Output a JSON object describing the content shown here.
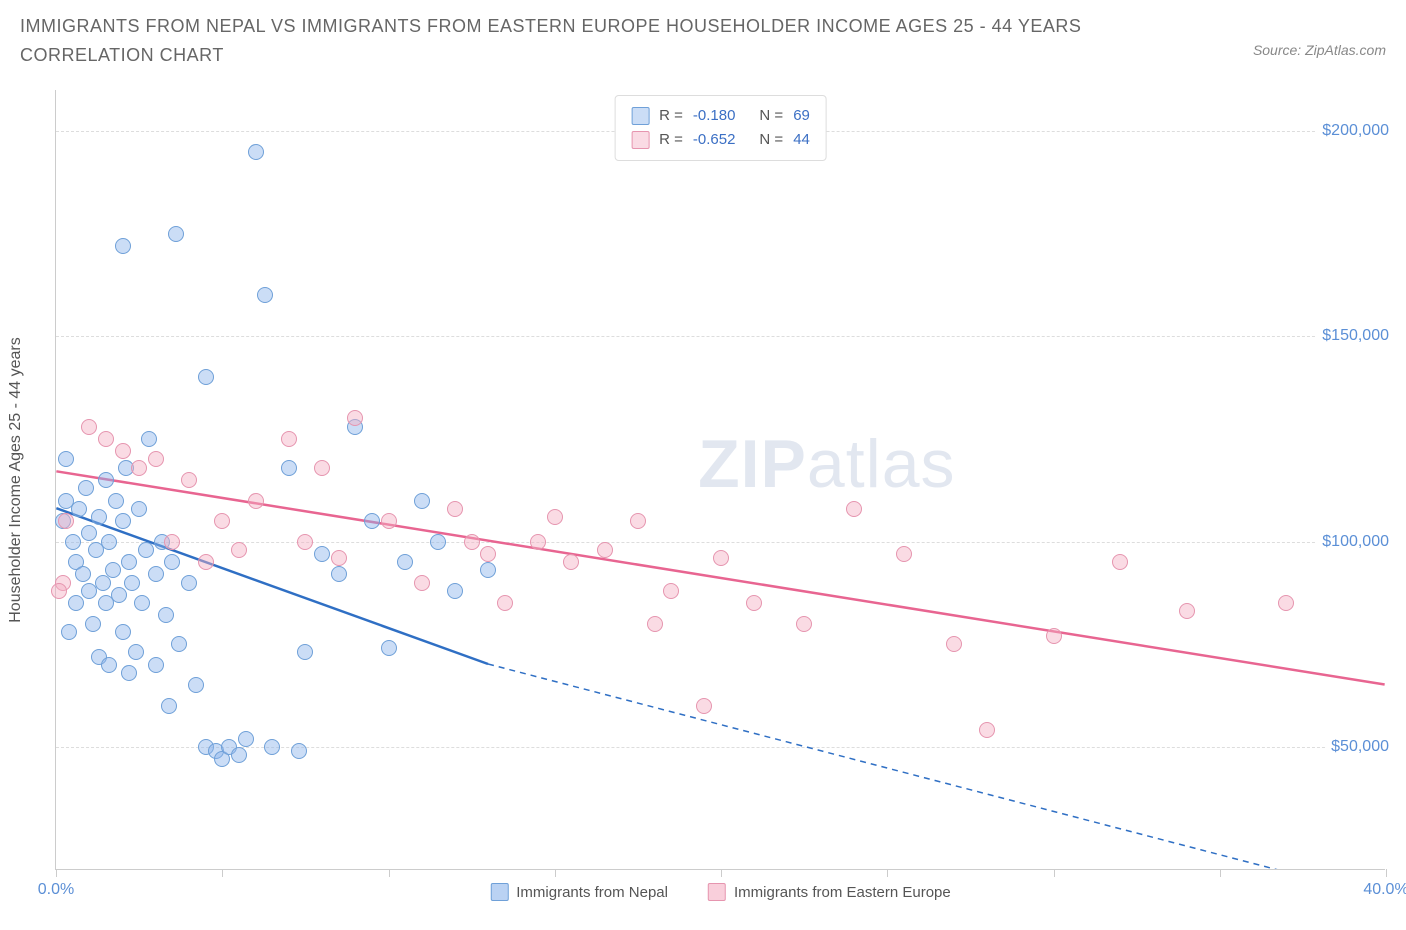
{
  "header": {
    "title": "IMMIGRANTS FROM NEPAL VS IMMIGRANTS FROM EASTERN EUROPE HOUSEHOLDER INCOME AGES 25 - 44 YEARS CORRELATION CHART",
    "source": "Source: ZipAtlas.com"
  },
  "chart": {
    "type": "scatter",
    "y_axis_title": "Householder Income Ages 25 - 44 years",
    "xlim": [
      0,
      40
    ],
    "ylim": [
      20000,
      210000
    ],
    "x_ticks": [
      0,
      5,
      10,
      15,
      20,
      25,
      30,
      35,
      40
    ],
    "x_tick_labels": {
      "0": "0.0%",
      "40": "40.0%"
    },
    "y_gridlines": [
      50000,
      100000,
      150000,
      200000
    ],
    "y_tick_labels": {
      "50000": "$50,000",
      "100000": "$100,000",
      "150000": "$150,000",
      "200000": "$200,000"
    },
    "background_color": "#ffffff",
    "grid_color": "#dddddd",
    "axis_color": "#cccccc",
    "label_color": "#5b8fd6",
    "text_color": "#555555",
    "watermark": "ZIPatlas",
    "series": [
      {
        "name": "Immigrants from Nepal",
        "fill": "rgba(140, 180, 235, 0.45)",
        "stroke": "#6fa0d8",
        "line_color": "#2f6fc4",
        "line_width": 2.5,
        "marker_radius": 8,
        "stats": {
          "R": "-0.180",
          "N": "69"
        },
        "trend": {
          "x1": 0,
          "y1": 108000,
          "x2_solid": 13,
          "y2_solid": 70000,
          "x2_dash": 40,
          "y2_dash": 13000
        },
        "points": [
          [
            0.2,
            105000
          ],
          [
            0.3,
            110000
          ],
          [
            0.5,
            100000
          ],
          [
            0.6,
            95000
          ],
          [
            0.7,
            108000
          ],
          [
            0.8,
            92000
          ],
          [
            0.9,
            113000
          ],
          [
            1.0,
            102000
          ],
          [
            1.0,
            88000
          ],
          [
            1.2,
            98000
          ],
          [
            1.3,
            106000
          ],
          [
            1.4,
            90000
          ],
          [
            1.5,
            115000
          ],
          [
            1.5,
            85000
          ],
          [
            1.6,
            100000
          ],
          [
            1.7,
            93000
          ],
          [
            1.8,
            110000
          ],
          [
            1.9,
            87000
          ],
          [
            2.0,
            105000
          ],
          [
            2.0,
            78000
          ],
          [
            2.1,
            118000
          ],
          [
            2.2,
            95000
          ],
          [
            2.3,
            90000
          ],
          [
            2.4,
            73000
          ],
          [
            2.5,
            108000
          ],
          [
            2.6,
            85000
          ],
          [
            2.7,
            98000
          ],
          [
            2.8,
            125000
          ],
          [
            3.0,
            92000
          ],
          [
            3.0,
            70000
          ],
          [
            3.2,
            100000
          ],
          [
            3.3,
            82000
          ],
          [
            3.5,
            95000
          ],
          [
            3.6,
            175000
          ],
          [
            3.7,
            75000
          ],
          [
            4.0,
            90000
          ],
          [
            4.2,
            65000
          ],
          [
            4.5,
            140000
          ],
          [
            4.5,
            50000
          ],
          [
            4.8,
            49000
          ],
          [
            5.0,
            47000
          ],
          [
            5.2,
            50000
          ],
          [
            5.5,
            48000
          ],
          [
            5.7,
            52000
          ],
          [
            6.0,
            195000
          ],
          [
            6.3,
            160000
          ],
          [
            6.5,
            50000
          ],
          [
            7.0,
            118000
          ],
          [
            7.3,
            49000
          ],
          [
            7.5,
            73000
          ],
          [
            8.0,
            97000
          ],
          [
            8.5,
            92000
          ],
          [
            9.0,
            128000
          ],
          [
            9.5,
            105000
          ],
          [
            10.0,
            74000
          ],
          [
            10.5,
            95000
          ],
          [
            11.0,
            110000
          ],
          [
            11.5,
            100000
          ],
          [
            12.0,
            88000
          ],
          [
            13.0,
            93000
          ],
          [
            2.0,
            172000
          ],
          [
            0.3,
            120000
          ],
          [
            0.4,
            78000
          ],
          [
            0.6,
            85000
          ],
          [
            1.1,
            80000
          ],
          [
            1.3,
            72000
          ],
          [
            1.6,
            70000
          ],
          [
            2.2,
            68000
          ],
          [
            3.4,
            60000
          ]
        ]
      },
      {
        "name": "Immigrants from Eastern Europe",
        "fill": "rgba(245, 175, 195, 0.45)",
        "stroke": "#e695af",
        "line_color": "#e86591",
        "line_width": 2.5,
        "marker_radius": 8,
        "stats": {
          "R": "-0.652",
          "N": "44"
        },
        "trend": {
          "x1": 0,
          "y1": 117000,
          "x2_solid": 40,
          "y2_solid": 65000
        },
        "points": [
          [
            0.2,
            90000
          ],
          [
            0.3,
            105000
          ],
          [
            1.0,
            128000
          ],
          [
            1.5,
            125000
          ],
          [
            2.0,
            122000
          ],
          [
            2.5,
            118000
          ],
          [
            3.0,
            120000
          ],
          [
            3.5,
            100000
          ],
          [
            4.0,
            115000
          ],
          [
            4.5,
            95000
          ],
          [
            5.0,
            105000
          ],
          [
            5.5,
            98000
          ],
          [
            6.0,
            110000
          ],
          [
            7.0,
            125000
          ],
          [
            7.5,
            100000
          ],
          [
            8.0,
            118000
          ],
          [
            8.5,
            96000
          ],
          [
            9.0,
            130000
          ],
          [
            10.0,
            105000
          ],
          [
            11.0,
            90000
          ],
          [
            12.0,
            108000
          ],
          [
            12.5,
            100000
          ],
          [
            13.0,
            97000
          ],
          [
            13.5,
            85000
          ],
          [
            14.5,
            100000
          ],
          [
            15.0,
            106000
          ],
          [
            15.5,
            95000
          ],
          [
            16.5,
            98000
          ],
          [
            17.5,
            105000
          ],
          [
            18.0,
            80000
          ],
          [
            18.5,
            88000
          ],
          [
            19.5,
            60000
          ],
          [
            20.0,
            96000
          ],
          [
            21.0,
            85000
          ],
          [
            22.5,
            80000
          ],
          [
            24.0,
            108000
          ],
          [
            25.5,
            97000
          ],
          [
            27.0,
            75000
          ],
          [
            28.0,
            54000
          ],
          [
            30.0,
            77000
          ],
          [
            32.0,
            95000
          ],
          [
            34.0,
            83000
          ],
          [
            37.0,
            85000
          ],
          [
            0.1,
            88000
          ]
        ]
      }
    ],
    "bottom_legend": [
      {
        "label": "Immigrants from Nepal",
        "fill": "rgba(140, 180, 235, 0.6)",
        "stroke": "#6fa0d8"
      },
      {
        "label": "Immigrants from Eastern Europe",
        "fill": "rgba(245, 175, 195, 0.6)",
        "stroke": "#e695af"
      }
    ]
  }
}
